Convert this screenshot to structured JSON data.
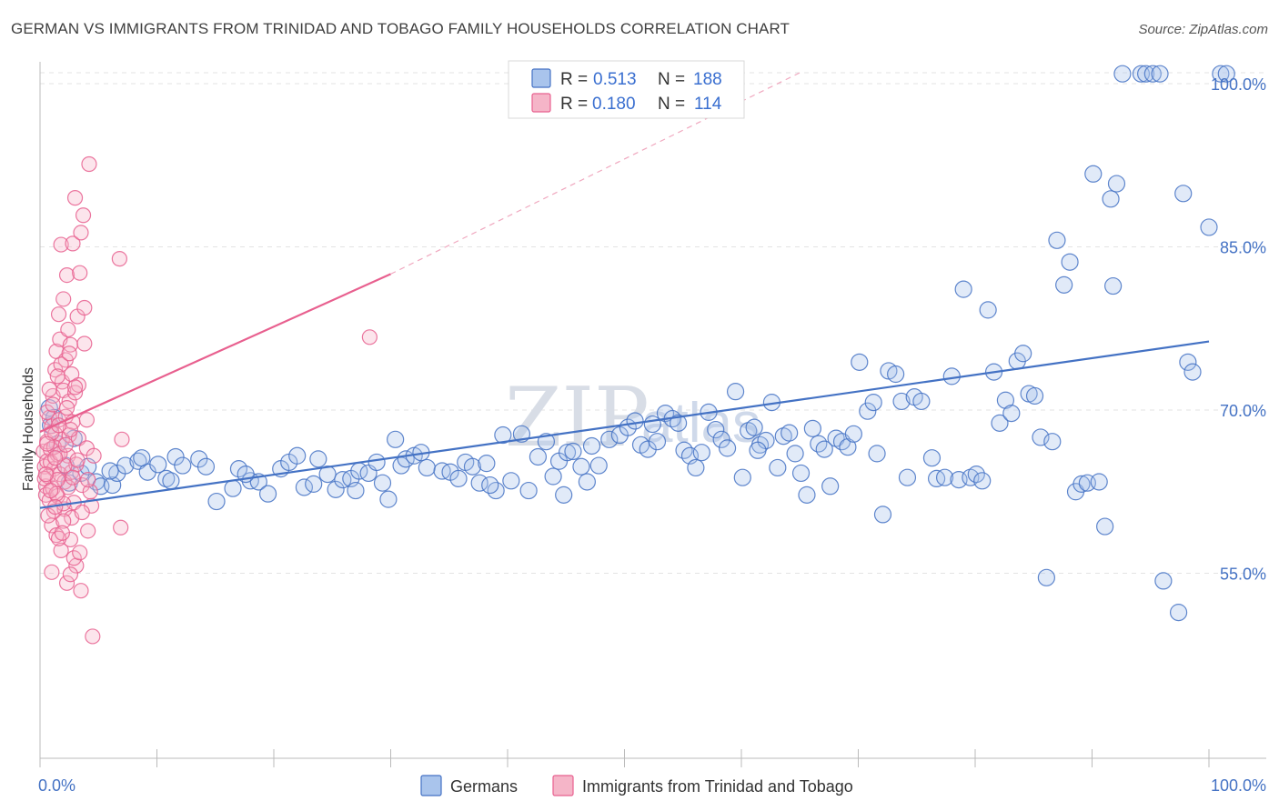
{
  "title": "GERMAN VS IMMIGRANTS FROM TRINIDAD AND TOBAGO FAMILY HOUSEHOLDS CORRELATION CHART",
  "source": "Source: ZipAtlas.com",
  "watermark": {
    "zip": "ZIP",
    "atlas": "atlas"
  },
  "colors": {
    "blue": "#4472c4",
    "blue_fill": "#a9c4ec",
    "pink": "#e8608f",
    "pink_fill": "#f5b5c8",
    "grid": "#e3e3e3",
    "axis_text": "#4472c4"
  },
  "legend": {
    "rows": [
      {
        "r_label": "R =",
        "r_value": "0.513",
        "n_label": "N =",
        "n_value": "188",
        "color": "blue"
      },
      {
        "r_label": "R =",
        "r_value": "0.180",
        "n_label": "N =",
        "n_value": "114",
        "color": "pink"
      }
    ]
  },
  "bottom_legend": [
    "Germans",
    "Immigrants from Trinidad and Tobago"
  ],
  "chart_data": {
    "type": "scatter",
    "title": "GERMAN VS IMMIGRANTS FROM TRINIDAD AND TOBAGO FAMILY HOUSEHOLDS CORRELATION CHART",
    "xlabel": "",
    "ylabel": "Family Households",
    "xlim": [
      0,
      100
    ],
    "ylim": [
      38,
      102
    ],
    "x_tick_labels": [
      "0.0%",
      "100.0%"
    ],
    "y_ticks": [
      55,
      70,
      85,
      100
    ],
    "y_tick_labels": [
      "55.0%",
      "70.0%",
      "85.0%",
      "100.0%"
    ],
    "grid": "horizontal dashed",
    "legend_placement": "top-center",
    "series": [
      {
        "name": "Germans",
        "color": "blue",
        "R": 0.513,
        "N": 188,
        "trend": {
          "x": [
            0,
            100
          ],
          "y": [
            61.0,
            76.3
          ],
          "style": "solid"
        },
        "points": [
          [
            0.8,
            70.2
          ],
          [
            0.9,
            68.6
          ],
          [
            1.2,
            69.3
          ],
          [
            1.5,
            66.9
          ],
          [
            2.2,
            64.9
          ],
          [
            2.5,
            63.3
          ],
          [
            3.5,
            64.2
          ],
          [
            4.1,
            64.8
          ],
          [
            4.8,
            63.4
          ],
          [
            5.2,
            63.0
          ],
          [
            6.2,
            63.1
          ],
          [
            6.6,
            64.2
          ],
          [
            7.3,
            64.9
          ],
          [
            8.4,
            65.3
          ],
          [
            9.2,
            64.3
          ],
          [
            10.1,
            65.0
          ],
          [
            10.8,
            63.7
          ],
          [
            11.6,
            65.7
          ],
          [
            12.2,
            64.9
          ],
          [
            13.6,
            65.5
          ],
          [
            14.2,
            64.8
          ],
          [
            15.1,
            61.6
          ],
          [
            16.5,
            62.8
          ],
          [
            17.0,
            64.6
          ],
          [
            18.0,
            63.5
          ],
          [
            18.7,
            63.4
          ],
          [
            19.5,
            62.3
          ],
          [
            20.6,
            64.6
          ],
          [
            21.3,
            65.2
          ],
          [
            22.0,
            65.8
          ],
          [
            22.6,
            62.9
          ],
          [
            23.4,
            63.2
          ],
          [
            23.8,
            65.5
          ],
          [
            24.6,
            64.1
          ],
          [
            25.3,
            62.7
          ],
          [
            25.9,
            63.6
          ],
          [
            26.6,
            63.7
          ],
          [
            27.3,
            64.4
          ],
          [
            28.1,
            64.2
          ],
          [
            28.8,
            65.2
          ],
          [
            29.3,
            63.3
          ],
          [
            29.8,
            61.8
          ],
          [
            30.4,
            67.3
          ],
          [
            30.9,
            64.9
          ],
          [
            31.3,
            65.5
          ],
          [
            32.0,
            65.8
          ],
          [
            32.6,
            66.1
          ],
          [
            33.1,
            64.7
          ],
          [
            34.4,
            64.4
          ],
          [
            35.1,
            64.3
          ],
          [
            35.8,
            63.7
          ],
          [
            36.4,
            65.2
          ],
          [
            37.0,
            64.8
          ],
          [
            37.6,
            63.3
          ],
          [
            38.2,
            65.1
          ],
          [
            39.0,
            62.6
          ],
          [
            39.6,
            67.7
          ],
          [
            40.3,
            63.5
          ],
          [
            41.2,
            67.8
          ],
          [
            41.8,
            62.6
          ],
          [
            42.6,
            65.7
          ],
          [
            43.3,
            67.1
          ],
          [
            43.9,
            63.9
          ],
          [
            44.4,
            65.3
          ],
          [
            45.1,
            66.1
          ],
          [
            45.6,
            66.2
          ],
          [
            46.3,
            64.8
          ],
          [
            46.8,
            63.4
          ],
          [
            47.2,
            66.7
          ],
          [
            47.8,
            64.9
          ],
          [
            48.7,
            67.3
          ],
          [
            49.6,
            67.7
          ],
          [
            50.3,
            68.4
          ],
          [
            50.9,
            69.0
          ],
          [
            51.4,
            66.8
          ],
          [
            52.0,
            66.4
          ],
          [
            52.8,
            67.1
          ],
          [
            53.5,
            69.7
          ],
          [
            54.1,
            69.2
          ],
          [
            54.6,
            68.8
          ],
          [
            55.1,
            66.3
          ],
          [
            55.6,
            65.8
          ],
          [
            56.1,
            64.7
          ],
          [
            56.6,
            66.1
          ],
          [
            57.2,
            69.8
          ],
          [
            57.8,
            68.2
          ],
          [
            58.3,
            67.3
          ],
          [
            58.8,
            66.5
          ],
          [
            59.5,
            71.7
          ],
          [
            60.1,
            63.8
          ],
          [
            60.6,
            68.1
          ],
          [
            61.1,
            68.4
          ],
          [
            61.6,
            66.8
          ],
          [
            62.1,
            67.2
          ],
          [
            62.6,
            70.7
          ],
          [
            63.1,
            64.7
          ],
          [
            63.6,
            67.6
          ],
          [
            64.1,
            67.9
          ],
          [
            64.6,
            66.0
          ],
          [
            65.1,
            64.2
          ],
          [
            65.6,
            62.2
          ],
          [
            66.1,
            68.3
          ],
          [
            66.6,
            66.9
          ],
          [
            67.1,
            66.4
          ],
          [
            67.6,
            63.0
          ],
          [
            68.1,
            67.4
          ],
          [
            68.6,
            67.1
          ],
          [
            69.1,
            66.6
          ],
          [
            69.6,
            67.8
          ],
          [
            70.1,
            74.4
          ],
          [
            70.8,
            69.9
          ],
          [
            71.3,
            70.7
          ],
          [
            71.6,
            66.0
          ],
          [
            72.1,
            60.4
          ],
          [
            72.6,
            73.6
          ],
          [
            73.2,
            73.3
          ],
          [
            73.7,
            70.8
          ],
          [
            74.2,
            63.8
          ],
          [
            74.8,
            71.2
          ],
          [
            75.4,
            70.8
          ],
          [
            76.3,
            65.6
          ],
          [
            76.7,
            63.7
          ],
          [
            77.4,
            63.8
          ],
          [
            78.0,
            73.1
          ],
          [
            78.6,
            63.6
          ],
          [
            79.0,
            81.1
          ],
          [
            79.6,
            63.8
          ],
          [
            80.1,
            64.1
          ],
          [
            80.6,
            63.5
          ],
          [
            81.1,
            79.2
          ],
          [
            81.6,
            73.5
          ],
          [
            82.1,
            68.8
          ],
          [
            82.6,
            70.9
          ],
          [
            83.1,
            69.7
          ],
          [
            83.6,
            74.5
          ],
          [
            84.1,
            75.2
          ],
          [
            84.6,
            71.5
          ],
          [
            85.1,
            71.3
          ],
          [
            85.6,
            67.5
          ],
          [
            86.1,
            54.6
          ],
          [
            86.6,
            67.1
          ],
          [
            87.0,
            85.6
          ],
          [
            87.6,
            81.5
          ],
          [
            88.1,
            83.6
          ],
          [
            88.6,
            62.5
          ],
          [
            89.1,
            63.2
          ],
          [
            89.6,
            63.3
          ],
          [
            90.1,
            91.7
          ],
          [
            90.6,
            63.4
          ],
          [
            91.1,
            59.3
          ],
          [
            91.6,
            89.4
          ],
          [
            91.8,
            81.4
          ],
          [
            92.1,
            90.8
          ],
          [
            92.6,
            100.9
          ],
          [
            94.2,
            100.9
          ],
          [
            94.6,
            100.9
          ],
          [
            95.2,
            100.9
          ],
          [
            95.8,
            100.9
          ],
          [
            96.1,
            54.3
          ],
          [
            97.4,
            51.4
          ],
          [
            97.8,
            89.9
          ],
          [
            98.2,
            74.4
          ],
          [
            98.6,
            73.5
          ],
          [
            100.0,
            86.8
          ],
          [
            101.0,
            100.9
          ],
          [
            101.5,
            100.9
          ],
          [
            2.9,
            67.4
          ],
          [
            6.0,
            64.4
          ],
          [
            8.7,
            65.6
          ],
          [
            11.2,
            63.5
          ],
          [
            17.6,
            64.1
          ],
          [
            27.0,
            62.6
          ],
          [
            38.5,
            63.1
          ],
          [
            44.8,
            62.2
          ],
          [
            52.4,
            68.7
          ],
          [
            61.4,
            66.3
          ]
        ]
      },
      {
        "name": "Immigrants from Trinidad and Tobago",
        "color": "pink",
        "R": 0.18,
        "N": 114,
        "trend": {
          "x": [
            0,
            30,
            65
          ],
          "y": [
            68.0,
            82.5,
            101.0
          ],
          "style": "solid-then-dashed",
          "solid_until_x": 30
        },
        "points": [
          [
            0.3,
            66.2
          ],
          [
            0.4,
            64.8
          ],
          [
            0.5,
            63.0
          ],
          [
            0.5,
            62.2
          ],
          [
            0.6,
            65.3
          ],
          [
            0.6,
            67.1
          ],
          [
            0.7,
            63.9
          ],
          [
            0.8,
            61.7
          ],
          [
            0.8,
            69.3
          ],
          [
            0.9,
            66.4
          ],
          [
            1.0,
            68.5
          ],
          [
            1.0,
            59.4
          ],
          [
            1.0,
            55.1
          ],
          [
            1.1,
            71.3
          ],
          [
            1.1,
            62.8
          ],
          [
            1.2,
            64.6
          ],
          [
            1.2,
            60.7
          ],
          [
            1.3,
            73.7
          ],
          [
            1.3,
            67.8
          ],
          [
            1.4,
            75.4
          ],
          [
            1.4,
            58.5
          ],
          [
            1.5,
            65.9
          ],
          [
            1.5,
            62.1
          ],
          [
            1.6,
            78.8
          ],
          [
            1.6,
            69.1
          ],
          [
            1.7,
            76.5
          ],
          [
            1.7,
            64.1
          ],
          [
            1.8,
            57.1
          ],
          [
            1.8,
            85.2
          ],
          [
            1.9,
            72.6
          ],
          [
            1.9,
            67.3
          ],
          [
            2.0,
            71.8
          ],
          [
            2.0,
            80.2
          ],
          [
            2.1,
            63.4
          ],
          [
            2.1,
            60.9
          ],
          [
            2.2,
            74.6
          ],
          [
            2.2,
            69.4
          ],
          [
            2.3,
            82.4
          ],
          [
            2.3,
            54.1
          ],
          [
            2.4,
            65.8
          ],
          [
            2.4,
            62.9
          ],
          [
            2.5,
            70.8
          ],
          [
            2.5,
            67.7
          ],
          [
            2.6,
            76.0
          ],
          [
            2.6,
            58.1
          ],
          [
            2.7,
            73.3
          ],
          [
            2.7,
            64.3
          ],
          [
            2.8,
            68.9
          ],
          [
            2.8,
            85.3
          ],
          [
            2.9,
            61.5
          ],
          [
            3.0,
            71.6
          ],
          [
            3.0,
            89.5
          ],
          [
            3.1,
            65.0
          ],
          [
            3.1,
            55.7
          ],
          [
            3.2,
            78.6
          ],
          [
            3.3,
            72.3
          ],
          [
            3.3,
            67.4
          ],
          [
            3.4,
            82.6
          ],
          [
            3.5,
            53.4
          ],
          [
            3.5,
            86.3
          ],
          [
            3.6,
            63.1
          ],
          [
            3.7,
            87.9
          ],
          [
            3.8,
            79.4
          ],
          [
            3.8,
            76.1
          ],
          [
            4.0,
            69.1
          ],
          [
            4.0,
            66.5
          ],
          [
            4.1,
            58.9
          ],
          [
            4.2,
            92.6
          ],
          [
            4.3,
            62.5
          ],
          [
            4.4,
            61.2
          ],
          [
            4.5,
            49.2
          ],
          [
            4.6,
            65.8
          ],
          [
            6.8,
            83.9
          ],
          [
            6.9,
            59.2
          ],
          [
            7.0,
            67.3
          ],
          [
            28.2,
            76.7
          ],
          [
            1.6,
            58.2
          ],
          [
            2.9,
            56.4
          ],
          [
            0.4,
            63.7
          ],
          [
            0.9,
            65.2
          ],
          [
            1.2,
            66.6
          ],
          [
            1.5,
            63.6
          ],
          [
            2.0,
            61.4
          ],
          [
            2.7,
            60.1
          ],
          [
            3.4,
            56.9
          ],
          [
            0.6,
            69.8
          ],
          [
            1.1,
            70.5
          ],
          [
            1.8,
            74.2
          ],
          [
            2.4,
            77.4
          ],
          [
            3.0,
            72.1
          ],
          [
            0.7,
            60.3
          ],
          [
            1.4,
            62.3
          ],
          [
            2.1,
            64.9
          ],
          [
            2.6,
            68.2
          ],
          [
            3.2,
            65.4
          ],
          [
            1.0,
            67.9
          ],
          [
            1.7,
            66.0
          ],
          [
            2.3,
            70.2
          ],
          [
            1.3,
            61.1
          ],
          [
            2.0,
            59.8
          ],
          [
            0.5,
            64.1
          ],
          [
            0.9,
            62.6
          ],
          [
            1.6,
            68.6
          ],
          [
            2.2,
            66.8
          ],
          [
            2.8,
            63.8
          ],
          [
            0.8,
            71.9
          ],
          [
            1.5,
            73.1
          ],
          [
            2.5,
            75.2
          ],
          [
            3.6,
            60.6
          ],
          [
            4.1,
            63.6
          ],
          [
            1.9,
            58.7
          ],
          [
            2.6,
            54.9
          ],
          [
            0.6,
            66.9
          ],
          [
            1.3,
            65.6
          ]
        ]
      }
    ]
  }
}
